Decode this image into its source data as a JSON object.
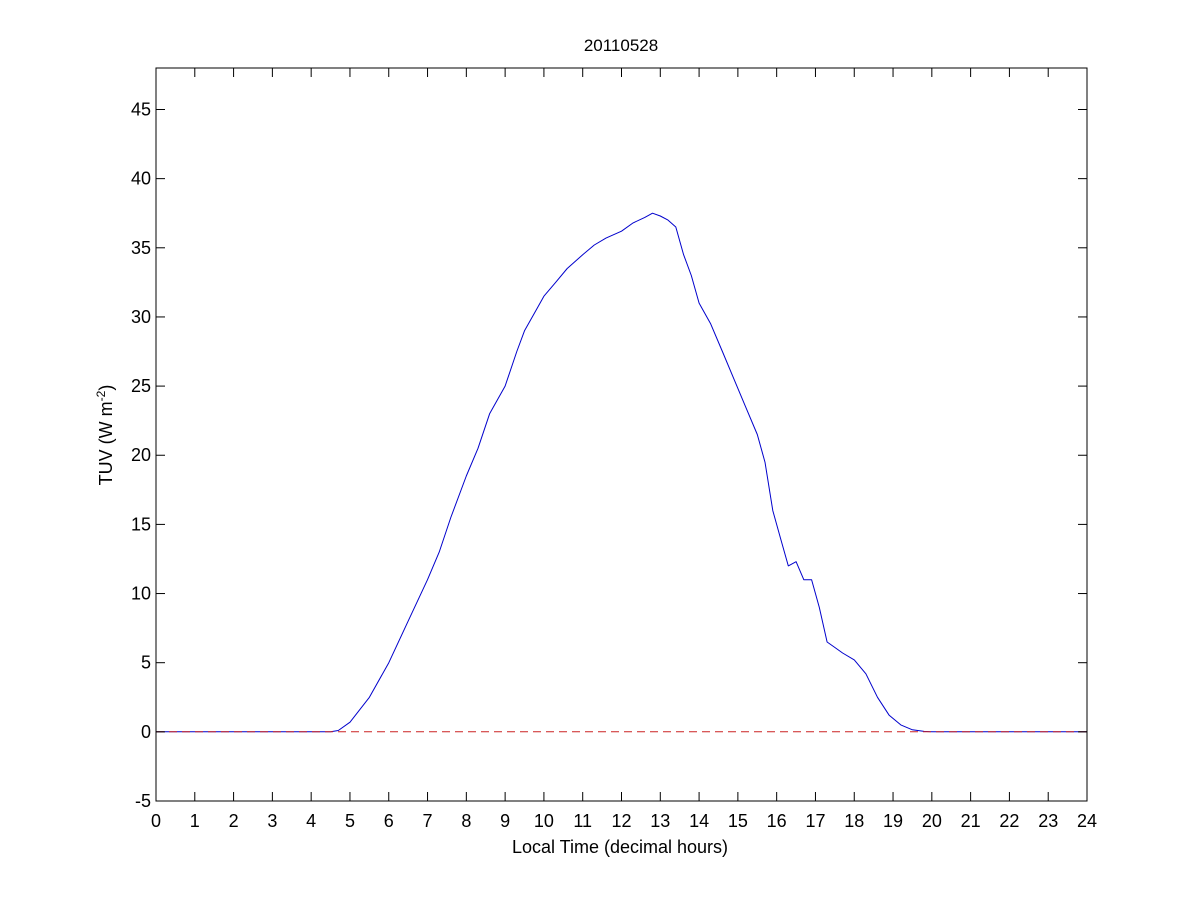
{
  "chart_data": {
    "type": "line",
    "title": "20110528",
    "xlabel": "Local Time (decimal hours)",
    "ylabel": {
      "main": "TUV (W m",
      "superscript": "-2",
      "close": ")"
    },
    "xlim": [
      0,
      24
    ],
    "ylim": [
      -5,
      48
    ],
    "xticks": [
      0,
      1,
      2,
      3,
      4,
      5,
      6,
      7,
      8,
      9,
      10,
      11,
      12,
      13,
      14,
      15,
      16,
      17,
      18,
      19,
      20,
      21,
      22,
      23,
      24
    ],
    "yticks": [
      -5,
      0,
      5,
      10,
      15,
      20,
      25,
      30,
      35,
      40,
      45
    ],
    "grid": false,
    "series": [
      {
        "color": "#0000cc",
        "style": "solid",
        "x": [
          0,
          4.5,
          4.7,
          5.0,
          5.5,
          6.0,
          6.5,
          7.0,
          7.3,
          7.6,
          8.0,
          8.3,
          8.6,
          9.0,
          9.3,
          9.5,
          9.8,
          10.0,
          10.3,
          10.6,
          11.0,
          11.3,
          11.6,
          12.0,
          12.3,
          12.6,
          12.8,
          13.0,
          13.2,
          13.4,
          13.6,
          13.8,
          14.0,
          14.3,
          14.6,
          14.9,
          15.2,
          15.5,
          15.7,
          15.9,
          16.1,
          16.3,
          16.5,
          16.7,
          16.9,
          17.1,
          17.3,
          17.5,
          17.7,
          18.0,
          18.3,
          18.6,
          18.9,
          19.2,
          19.5,
          19.8,
          20.0,
          24
        ],
        "y": [
          0,
          0,
          0.1,
          0.7,
          2.5,
          5.0,
          8.0,
          11.0,
          13.0,
          15.5,
          18.5,
          20.5,
          23.0,
          25.0,
          27.5,
          29.0,
          30.5,
          31.5,
          32.5,
          33.5,
          34.5,
          35.2,
          35.7,
          36.2,
          36.8,
          37.2,
          37.5,
          37.3,
          37.0,
          36.5,
          34.5,
          33.0,
          31.0,
          29.5,
          27.5,
          25.5,
          23.5,
          21.5,
          19.5,
          16.0,
          14.0,
          12.0,
          12.3,
          11.0,
          11.0,
          9.0,
          6.5,
          6.1,
          5.7,
          5.2,
          4.2,
          2.5,
          1.2,
          0.5,
          0.15,
          0.03,
          0,
          0
        ]
      },
      {
        "color": "#cc2222",
        "style": "dashed",
        "x": [
          0,
          24
        ],
        "y": [
          0,
          0
        ]
      }
    ]
  }
}
